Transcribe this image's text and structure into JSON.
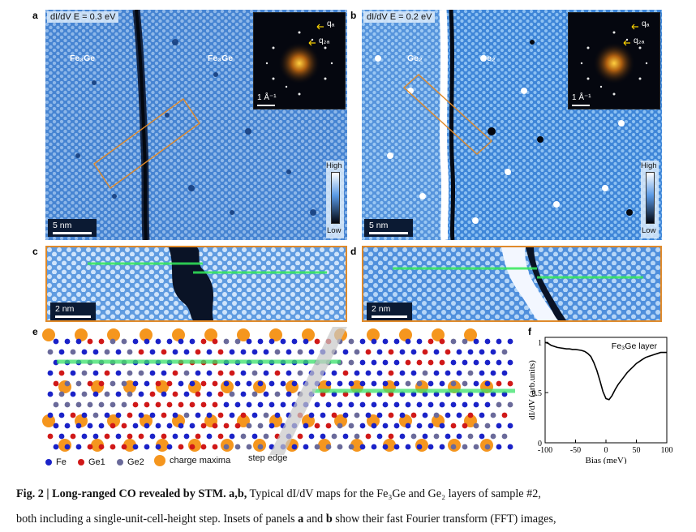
{
  "panel_letters": {
    "a": "a",
    "b": "b",
    "c": "c",
    "d": "d",
    "e": "e",
    "f": "f"
  },
  "panel_a": {
    "map_label": "dI/dV E = 0.3 eV",
    "layer_left": "Fe₃Ge",
    "layer_right": "Fe₃Ge",
    "scale": "5 nm",
    "fft_qa": "qₐ",
    "fft_q2a": "q₂ₐ",
    "fft_scale": "1 Å⁻¹",
    "colorbar_high": "High",
    "colorbar_low": "Low"
  },
  "panel_b": {
    "map_label": "dI/dV E = 0.2 eV",
    "layer_left": "Ge₂",
    "layer_right": "Ge₂",
    "scale": "5 nm",
    "fft_qa": "qₐ",
    "fft_q2a": "q₂ₐ",
    "fft_scale": "1 Å⁻¹",
    "colorbar_high": "High",
    "colorbar_low": "Low"
  },
  "panel_c": {
    "scale": "2 nm"
  },
  "panel_d": {
    "scale": "2 nm"
  },
  "panel_e": {
    "step_label": "step edge",
    "legend": [
      {
        "label": "Fe",
        "color": "#1a22c8"
      },
      {
        "label": "Ge1",
        "color": "#d01818"
      },
      {
        "label": "Ge2",
        "color": "#6a6a9a"
      },
      {
        "label": "charge maxima",
        "color": "#f5961e"
      }
    ]
  },
  "chart_data": {
    "type": "line",
    "title": "Fe₃Ge layer",
    "xlabel": "Bias (meV)",
    "ylabel": "dI/dV (arb.units)",
    "xlim": [
      -100,
      100
    ],
    "ylim": [
      0,
      1.05
    ],
    "xticks": [
      -100,
      -50,
      0,
      50,
      100
    ],
    "yticks": [
      0,
      0.5,
      1
    ],
    "series": [
      {
        "x": [
          -100,
          -95,
          -90,
          -85,
          -80,
          -75,
          -70,
          -65,
          -60,
          -55,
          -50,
          -45,
          -40,
          -35,
          -30,
          -25,
          -20,
          -15,
          -10,
          -5,
          0,
          5,
          10,
          15,
          20,
          25,
          30,
          35,
          40,
          45,
          50,
          55,
          60,
          65,
          70,
          75,
          80,
          85,
          90,
          95,
          100
        ],
        "y": [
          1.0,
          0.99,
          0.97,
          0.96,
          0.95,
          0.945,
          0.94,
          0.935,
          0.935,
          0.93,
          0.93,
          0.925,
          0.92,
          0.91,
          0.89,
          0.86,
          0.8,
          0.72,
          0.62,
          0.51,
          0.44,
          0.43,
          0.47,
          0.53,
          0.58,
          0.62,
          0.66,
          0.7,
          0.73,
          0.76,
          0.79,
          0.81,
          0.83,
          0.85,
          0.86,
          0.87,
          0.88,
          0.89,
          0.9,
          0.9,
          0.9
        ]
      }
    ]
  },
  "caption": {
    "line1_bold": "Fig. 2 | Long-ranged CO revealed by STM. a,b,",
    "line1_rest": " Typical dI/dV maps for the Fe₃Ge and Ge₂ layers of sample #2,",
    "line2": "both including a single-unit-cell-height step. Insets of panels ",
    "line2_a": "a",
    "line2_mid": " and ",
    "line2_b": "b",
    "line2_end": " show their fast Fourier transform (FFT) images,"
  }
}
